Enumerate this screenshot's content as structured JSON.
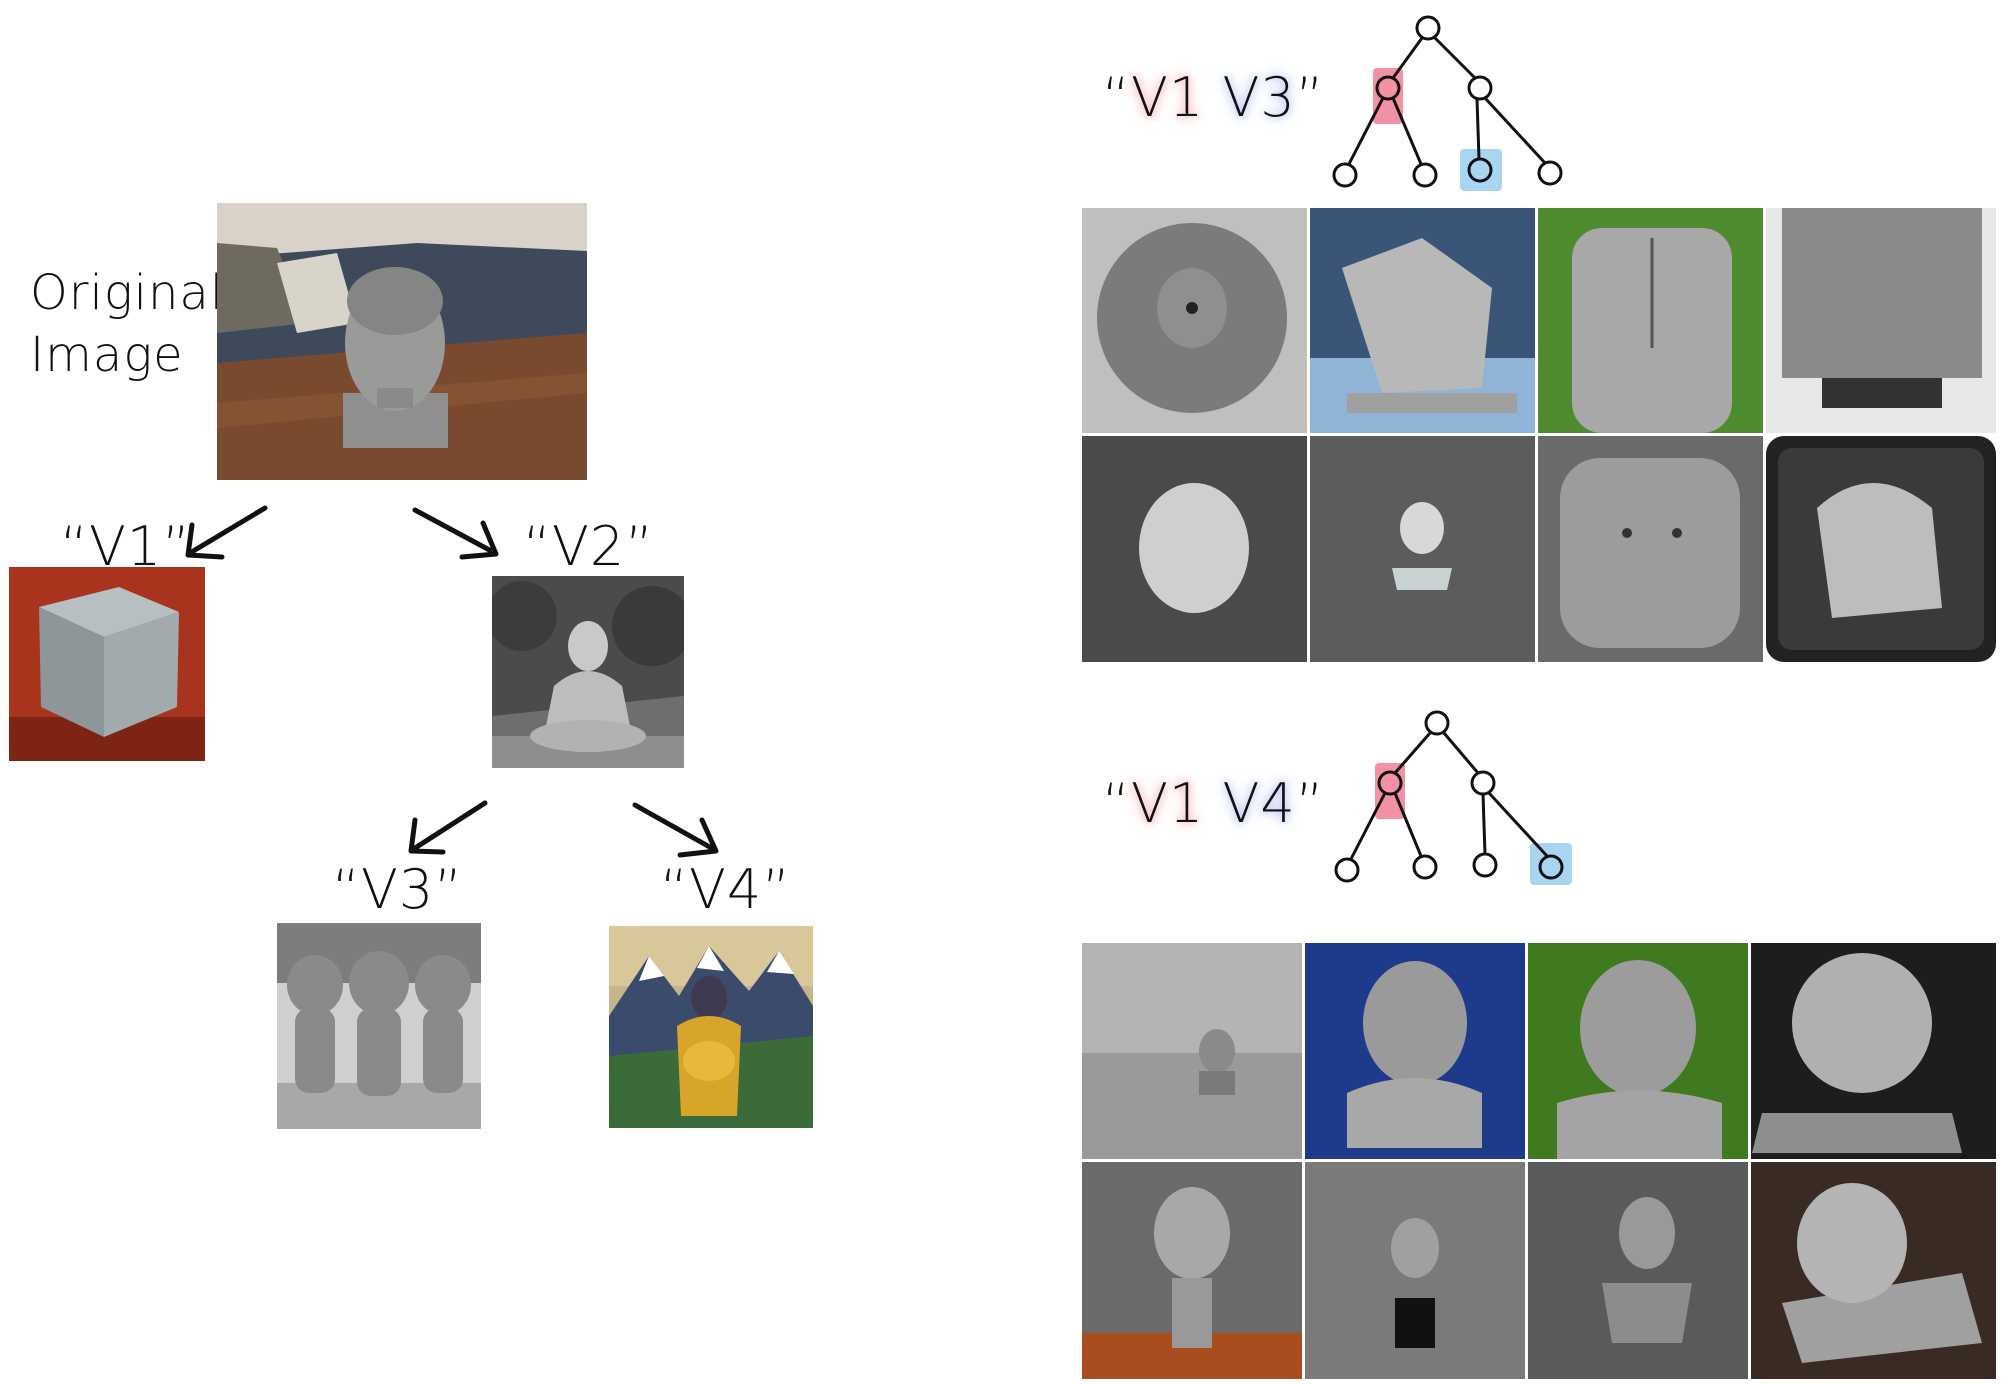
{
  "left_tree": {
    "original_label_line1": "Original",
    "original_label_line2": "Image",
    "v1_label": "“V1”",
    "v2_label": "“V2”",
    "v3_label": "“V3”",
    "v4_label": "“V4”"
  },
  "panel_top": {
    "prompt_open": "“",
    "token_a": "V1",
    "token_b": "V3",
    "prompt_close": "”",
    "highlight_colors": {
      "token_a": "#f28b96",
      "token_b": "#8fa6ee",
      "node_a": "#ef7e93",
      "node_b": "#9fd0f0"
    },
    "grid_rows": 2,
    "grid_cols": 4
  },
  "panel_bottom": {
    "prompt_open": "“",
    "token_a": "V1",
    "token_b": "V4",
    "prompt_close": "”",
    "highlight_colors": {
      "token_a": "#f28b96",
      "token_b": "#8fa6ee",
      "node_a": "#ef7e93",
      "node_b": "#9fd0f0"
    },
    "grid_rows": 2,
    "grid_cols": 4
  }
}
